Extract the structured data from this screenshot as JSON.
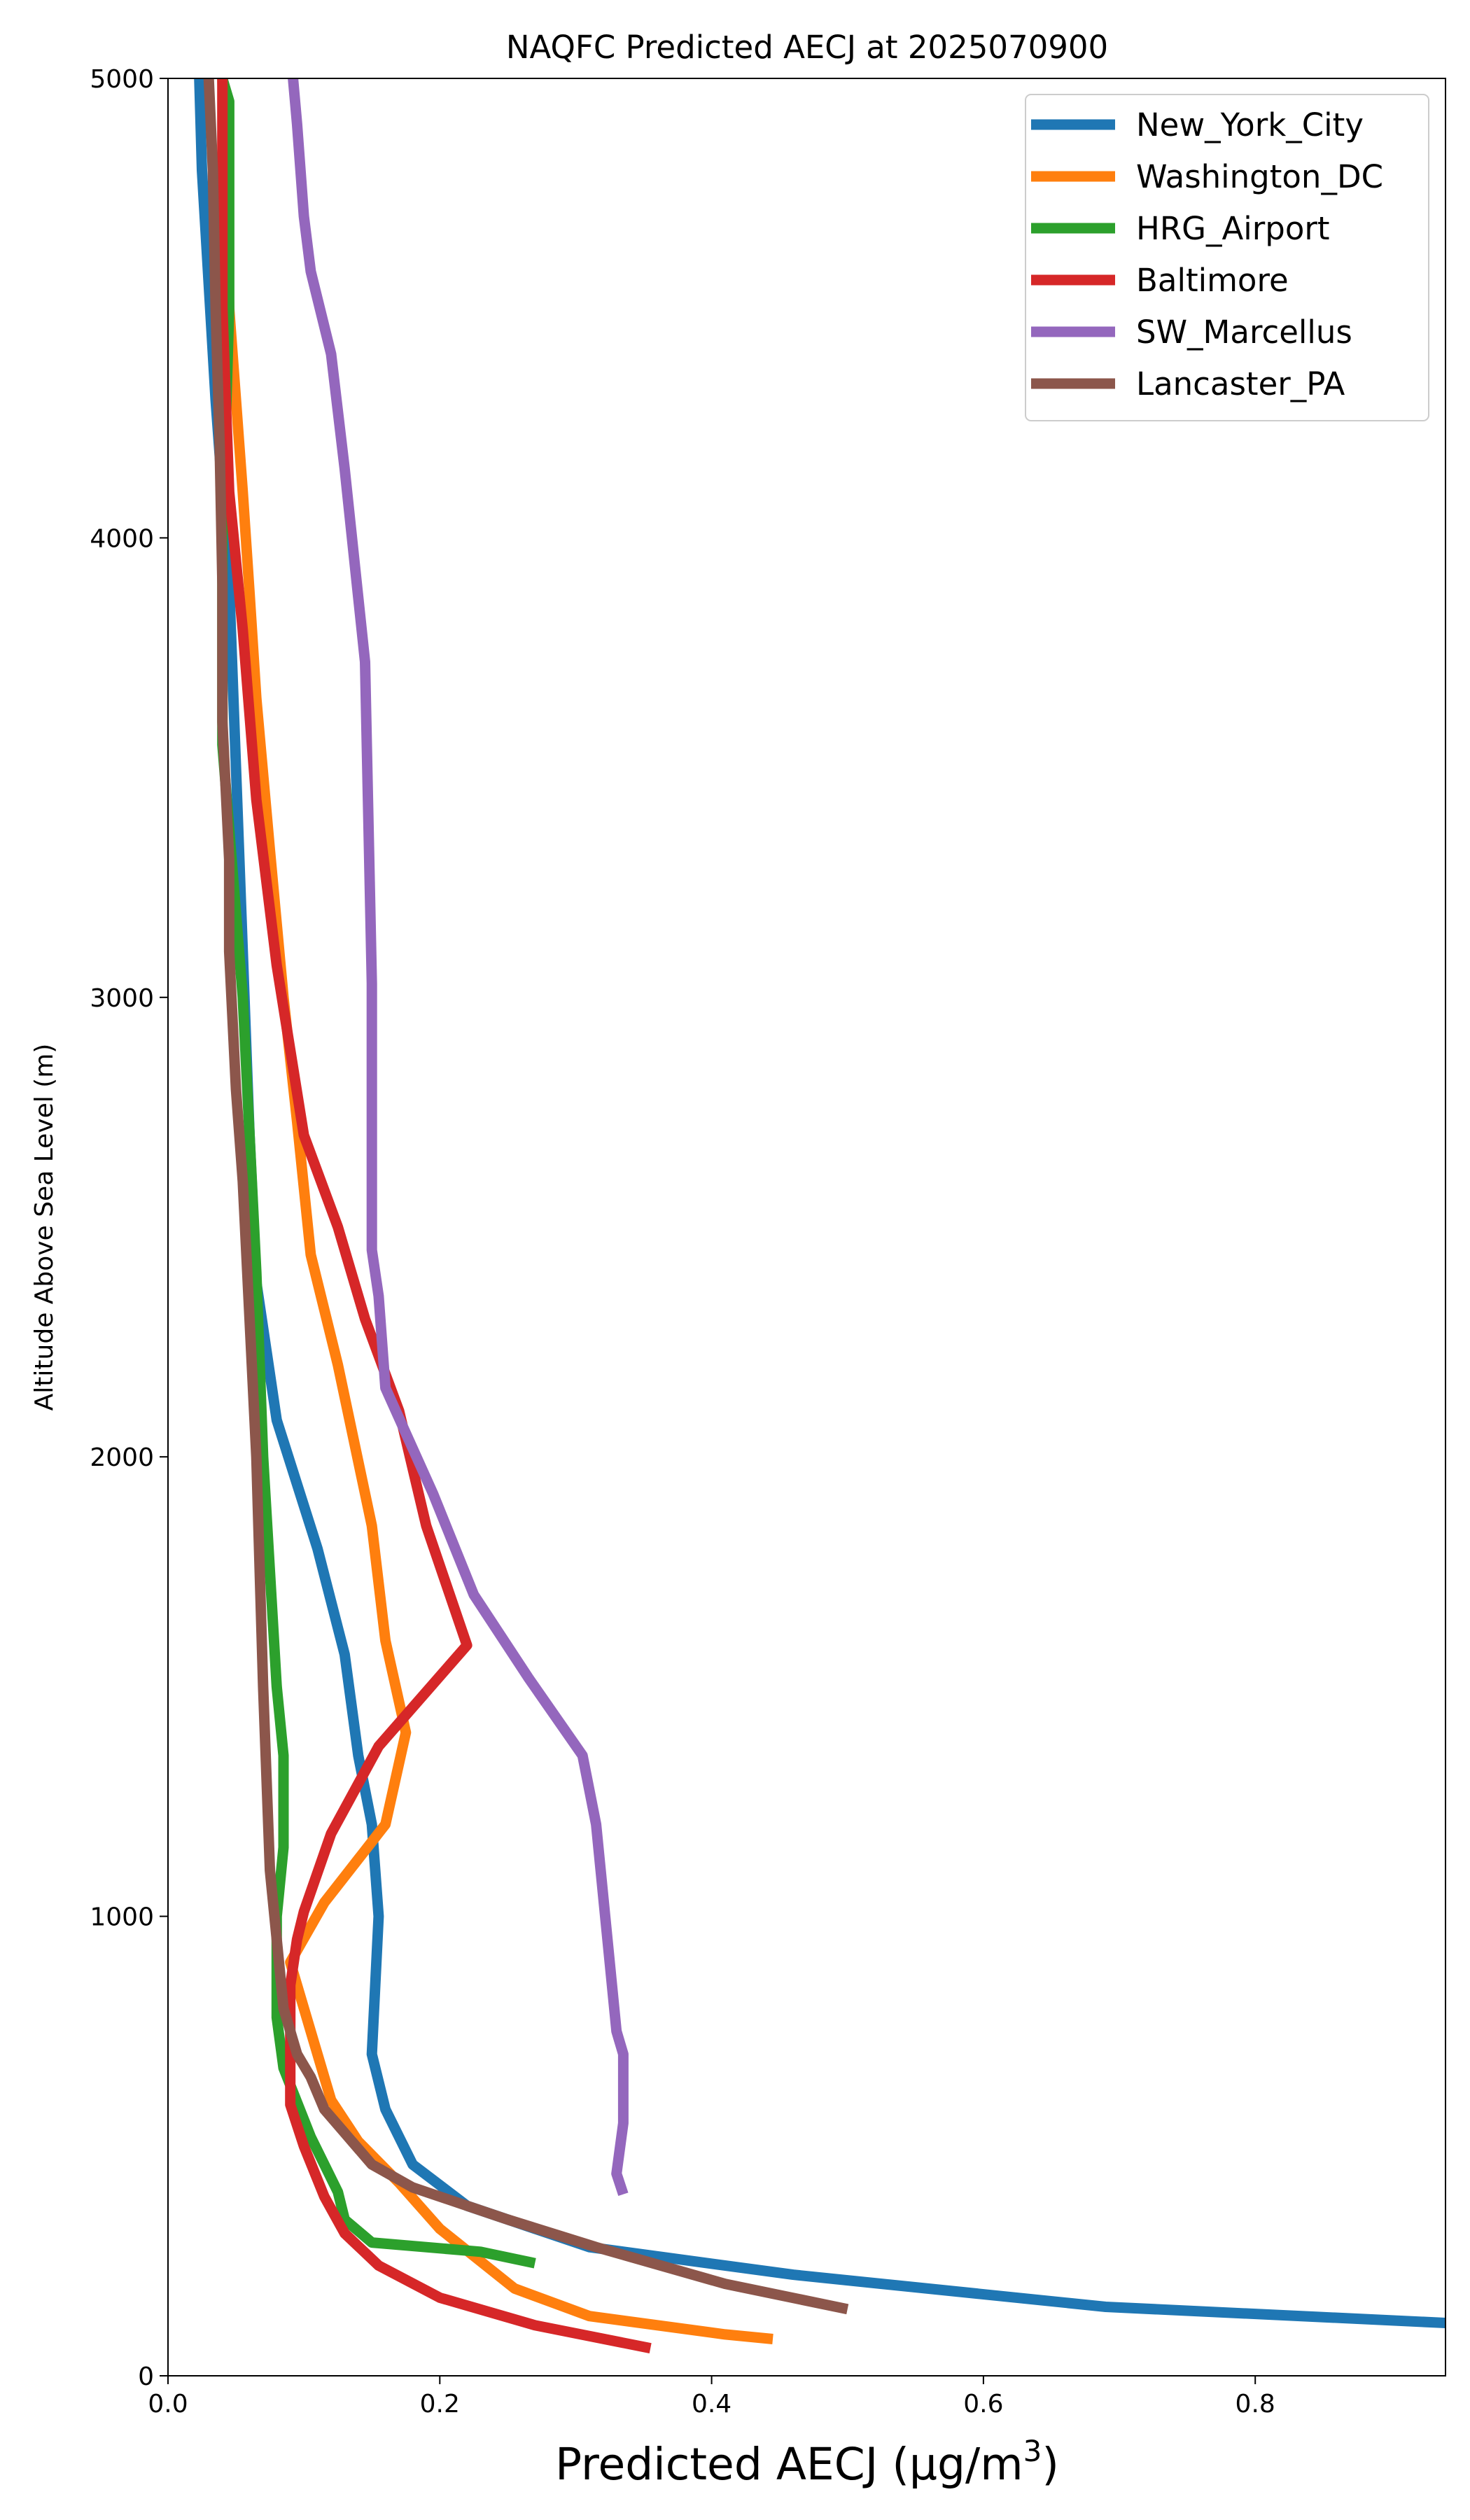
{
  "chart_data": {
    "type": "line",
    "title": "NAQFC Predicted AECJ at 2025070900",
    "xlabel": "Predicted AECJ",
    "xlabel_unit_prefix": "(μg/m",
    "xlabel_unit_sup": "3",
    "xlabel_unit_suffix": ")",
    "ylabel": "Altitude Above Sea Level (m)",
    "xlim": [
      0.0,
      0.94
    ],
    "ylim": [
      0,
      5000
    ],
    "xticks": [
      0.0,
      0.2,
      0.4,
      0.6,
      0.8
    ],
    "xtick_labels": [
      "0.0",
      "0.2",
      "0.4",
      "0.6",
      "0.8"
    ],
    "yticks": [
      0,
      1000,
      2000,
      3000,
      4000,
      5000
    ],
    "ytick_labels": [
      "0",
      "1000",
      "2000",
      "3000",
      "4000",
      "5000"
    ],
    "grid": false,
    "legend_position": "top-right",
    "series": [
      {
        "name": "New_York_City",
        "color": "#1f77b4",
        "points": [
          [
            0.94,
            115
          ],
          [
            0.69,
            150
          ],
          [
            0.46,
            220
          ],
          [
            0.31,
            280
          ],
          [
            0.22,
            370
          ],
          [
            0.18,
            460
          ],
          [
            0.16,
            580
          ],
          [
            0.15,
            700
          ],
          [
            0.155,
            1000
          ],
          [
            0.15,
            1200
          ],
          [
            0.14,
            1350
          ],
          [
            0.13,
            1570
          ],
          [
            0.11,
            1800
          ],
          [
            0.08,
            2080
          ],
          [
            0.065,
            2380
          ],
          [
            0.06,
            2700
          ],
          [
            0.055,
            3100
          ],
          [
            0.05,
            3500
          ],
          [
            0.045,
            3900
          ],
          [
            0.035,
            4300
          ],
          [
            0.025,
            4800
          ],
          [
            0.023,
            5000
          ]
        ]
      },
      {
        "name": "Washington_DC",
        "color": "#ff7f0e",
        "points": [
          [
            0.445,
            80
          ],
          [
            0.41,
            90
          ],
          [
            0.31,
            130
          ],
          [
            0.255,
            190
          ],
          [
            0.2,
            320
          ],
          [
            0.17,
            420
          ],
          [
            0.14,
            510
          ],
          [
            0.12,
            600
          ],
          [
            0.1,
            800
          ],
          [
            0.09,
            900
          ],
          [
            0.115,
            1030
          ],
          [
            0.16,
            1200
          ],
          [
            0.175,
            1400
          ],
          [
            0.16,
            1600
          ],
          [
            0.15,
            1850
          ],
          [
            0.125,
            2200
          ],
          [
            0.105,
            2440
          ],
          [
            0.095,
            2730
          ],
          [
            0.085,
            3000
          ],
          [
            0.075,
            3320
          ],
          [
            0.065,
            3650
          ],
          [
            0.06,
            3880
          ],
          [
            0.055,
            4100
          ],
          [
            0.045,
            4500
          ],
          [
            0.04,
            5000
          ]
        ]
      },
      {
        "name": "HRG_Airport",
        "color": "#2ca02c",
        "points": [
          [
            0.27,
            245
          ],
          [
            0.23,
            270
          ],
          [
            0.15,
            290
          ],
          [
            0.13,
            340
          ],
          [
            0.125,
            400
          ],
          [
            0.105,
            520
          ],
          [
            0.085,
            670
          ],
          [
            0.08,
            780
          ],
          [
            0.08,
            1000
          ],
          [
            0.085,
            1150
          ],
          [
            0.085,
            1350
          ],
          [
            0.08,
            1500
          ],
          [
            0.075,
            1750
          ],
          [
            0.07,
            2000
          ],
          [
            0.065,
            2400
          ],
          [
            0.055,
            3000
          ],
          [
            0.04,
            3550
          ],
          [
            0.04,
            4000
          ],
          [
            0.045,
            4500
          ],
          [
            0.045,
            4950
          ],
          [
            0.04,
            5000
          ]
        ]
      },
      {
        "name": "Baltimore",
        "color": "#d62728",
        "points": [
          [
            0.355,
            60
          ],
          [
            0.27,
            110
          ],
          [
            0.2,
            170
          ],
          [
            0.155,
            240
          ],
          [
            0.13,
            310
          ],
          [
            0.115,
            390
          ],
          [
            0.1,
            500
          ],
          [
            0.09,
            590
          ],
          [
            0.09,
            700
          ],
          [
            0.09,
            850
          ],
          [
            0.095,
            950
          ],
          [
            0.1,
            1010
          ],
          [
            0.12,
            1180
          ],
          [
            0.155,
            1370
          ],
          [
            0.22,
            1590
          ],
          [
            0.19,
            1850
          ],
          [
            0.17,
            2100
          ],
          [
            0.145,
            2300
          ],
          [
            0.125,
            2500
          ],
          [
            0.1,
            2700
          ],
          [
            0.08,
            3070
          ],
          [
            0.065,
            3430
          ],
          [
            0.055,
            3800
          ],
          [
            0.045,
            4100
          ],
          [
            0.04,
            4500
          ],
          [
            0.04,
            5000
          ]
        ]
      },
      {
        "name": "SW_Marcellus",
        "color": "#9467bd",
        "points": [
          [
            0.335,
            395
          ],
          [
            0.33,
            440
          ],
          [
            0.335,
            550
          ],
          [
            0.335,
            700
          ],
          [
            0.33,
            750
          ],
          [
            0.315,
            1200
          ],
          [
            0.305,
            1350
          ],
          [
            0.265,
            1520
          ],
          [
            0.225,
            1700
          ],
          [
            0.195,
            1920
          ],
          [
            0.16,
            2150
          ],
          [
            0.155,
            2350
          ],
          [
            0.15,
            2450
          ],
          [
            0.15,
            2700
          ],
          [
            0.15,
            3030
          ],
          [
            0.145,
            3730
          ],
          [
            0.13,
            4150
          ],
          [
            0.12,
            4400
          ],
          [
            0.105,
            4580
          ],
          [
            0.1,
            4700
          ],
          [
            0.095,
            4900
          ],
          [
            0.092,
            5000
          ]
        ]
      },
      {
        "name": "Lancaster_PA",
        "color": "#8c564b",
        "points": [
          [
            0.5,
            145
          ],
          [
            0.41,
            200
          ],
          [
            0.315,
            280
          ],
          [
            0.25,
            340
          ],
          [
            0.18,
            410
          ],
          [
            0.15,
            460
          ],
          [
            0.115,
            580
          ],
          [
            0.105,
            650
          ],
          [
            0.095,
            700
          ],
          [
            0.085,
            800
          ],
          [
            0.075,
            1100
          ],
          [
            0.07,
            1500
          ],
          [
            0.068,
            1700
          ],
          [
            0.065,
            2000
          ],
          [
            0.06,
            2300
          ],
          [
            0.055,
            2600
          ],
          [
            0.05,
            2800
          ],
          [
            0.045,
            3100
          ],
          [
            0.045,
            3300
          ],
          [
            0.04,
            3600
          ],
          [
            0.04,
            3900
          ],
          [
            0.038,
            4200
          ],
          [
            0.035,
            4500
          ],
          [
            0.033,
            4800
          ],
          [
            0.03,
            5000
          ]
        ]
      }
    ]
  }
}
